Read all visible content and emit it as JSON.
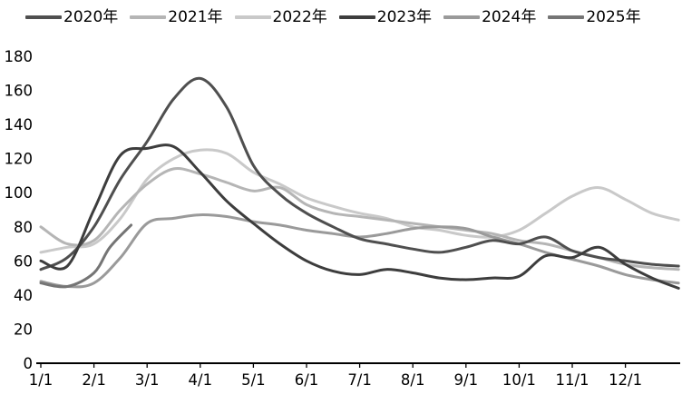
{
  "chart_data": {
    "type": "line",
    "title": "",
    "legend_position": "top",
    "grid": false,
    "x_axis": {
      "tick_labels": [
        "1/1",
        "2/1",
        "3/1",
        "4/1",
        "5/1",
        "6/1",
        "7/1",
        "8/1",
        "9/1",
        "10/1",
        "11/1",
        "12/1"
      ],
      "unit": "month/day of year"
    },
    "y_axis": {
      "ticks": [
        0,
        20,
        40,
        60,
        80,
        100,
        120,
        140,
        160,
        180
      ],
      "min": 0,
      "max": 180
    },
    "series": [
      {
        "name": "2020年",
        "color": "#4f4f4f",
        "x": [
          0,
          0.5,
          1,
          1.5,
          2,
          2.5,
          3,
          3.5,
          4,
          4.5,
          5,
          5.5,
          6,
          6.5,
          7,
          7.5,
          8,
          8.5,
          9,
          9.5,
          10,
          10.5,
          11,
          11.5,
          12
        ],
        "values": [
          55,
          62,
          80,
          108,
          130,
          155,
          167,
          150,
          116,
          99,
          88,
          80,
          73,
          70,
          67,
          65,
          68,
          72,
          70,
          74,
          66,
          62,
          60,
          58,
          57
        ]
      },
      {
        "name": "2021年",
        "color": "#b5b5b5",
        "x": [
          0,
          0.5,
          1,
          1.5,
          2,
          2.5,
          3,
          3.5,
          4,
          4.5,
          5,
          5.5,
          6,
          6.5,
          7,
          7.5,
          8,
          8.5,
          9,
          9.5,
          10,
          10.5,
          11,
          11.5,
          12
        ],
        "values": [
          80,
          70,
          72,
          90,
          105,
          114,
          111,
          106,
          101,
          103,
          93,
          88,
          86,
          84,
          82,
          80,
          78,
          76,
          72,
          70,
          66,
          62,
          58,
          56,
          55
        ]
      },
      {
        "name": "2022年",
        "color": "#c9c9c9",
        "x": [
          0,
          0.5,
          1,
          1.5,
          2,
          2.5,
          3,
          3.5,
          4,
          4.5,
          5,
          5.5,
          6,
          6.5,
          7,
          7.5,
          8,
          8.5,
          9,
          9.5,
          10,
          10.5,
          11,
          11.5,
          12
        ],
        "values": [
          65,
          68,
          70,
          85,
          108,
          120,
          125,
          123,
          112,
          105,
          97,
          92,
          88,
          85,
          80,
          78,
          75,
          74,
          78,
          88,
          98,
          103,
          96,
          88,
          84
        ]
      },
      {
        "name": "2023年",
        "color": "#3d3d3d",
        "x": [
          0,
          0.5,
          1,
          1.5,
          2,
          2.5,
          3,
          3.5,
          4,
          4.5,
          5,
          5.5,
          6,
          6.5,
          7,
          7.5,
          8,
          8.5,
          9,
          9.5,
          10,
          10.5,
          11,
          11.5,
          12
        ],
        "values": [
          60,
          57,
          90,
          122,
          126,
          127,
          112,
          95,
          82,
          70,
          60,
          54,
          52,
          55,
          53,
          50,
          49,
          50,
          51,
          63,
          62,
          68,
          58,
          50,
          44
        ]
      },
      {
        "name": "2024年",
        "color": "#9a9a9a",
        "x": [
          0,
          0.5,
          1,
          1.5,
          2,
          2.5,
          3,
          3.5,
          4,
          4.5,
          5,
          5.5,
          6,
          6.5,
          7,
          7.5,
          8,
          8.5,
          9,
          9.5,
          10,
          10.5,
          11,
          11.5,
          12
        ],
        "values": [
          48,
          45,
          47,
          62,
          82,
          85,
          87,
          86,
          83,
          81,
          78,
          76,
          74,
          76,
          79,
          80,
          79,
          74,
          70,
          65,
          61,
          57,
          52,
          49,
          47
        ]
      },
      {
        "name": "2025年",
        "color": "#757575",
        "x": [
          0,
          0.5,
          1,
          1.3,
          1.7
        ],
        "values": [
          47,
          45,
          53,
          68,
          81
        ]
      }
    ]
  }
}
